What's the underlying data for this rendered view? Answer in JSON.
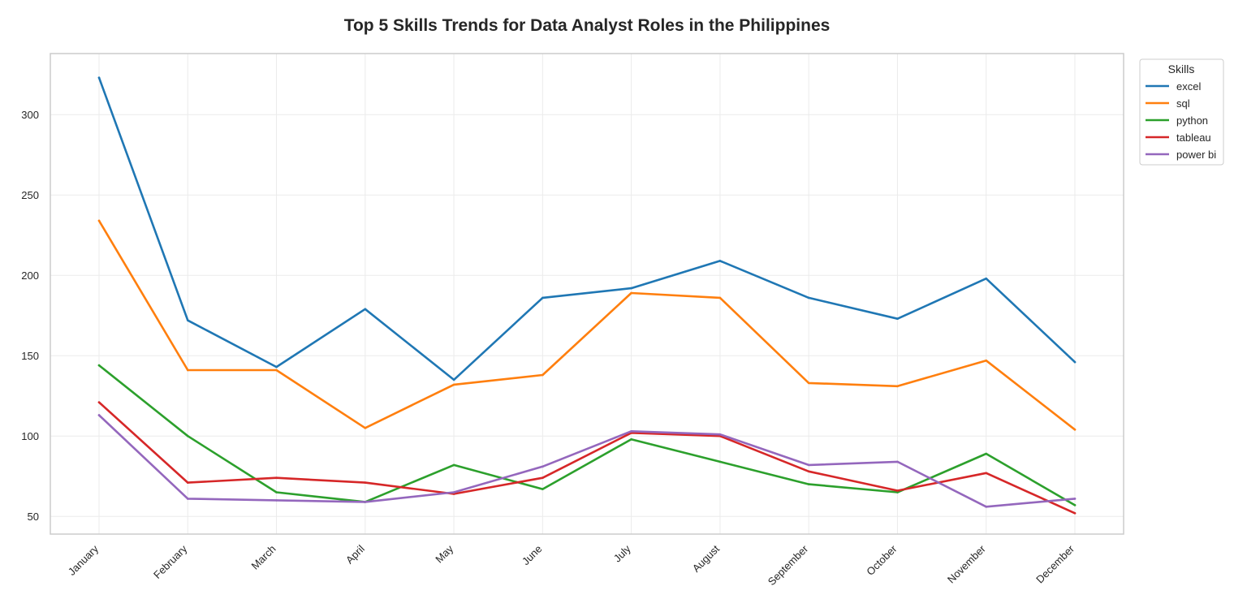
{
  "chart_data": {
    "type": "line",
    "title": "Top 5 Skills Trends for Data Analyst Roles in the Philippines",
    "xlabel": "",
    "ylabel": "",
    "categories": [
      "January",
      "February",
      "March",
      "April",
      "May",
      "June",
      "July",
      "August",
      "September",
      "October",
      "November",
      "December"
    ],
    "ylim": [
      39,
      338
    ],
    "yticks": [
      50,
      100,
      150,
      200,
      250,
      300
    ],
    "grid": true,
    "legend": {
      "title": "Skills",
      "placement": "outside upper right"
    },
    "series": [
      {
        "name": "excel",
        "color": "#1f77b4",
        "values": [
          323,
          172,
          143,
          179,
          135,
          186,
          192,
          209,
          186,
          173,
          198,
          146
        ]
      },
      {
        "name": "sql",
        "color": "#ff7f0e",
        "values": [
          234,
          141,
          141,
          105,
          132,
          138,
          189,
          186,
          133,
          131,
          147,
          104
        ]
      },
      {
        "name": "python",
        "color": "#2ca02c",
        "values": [
          144,
          100,
          65,
          59,
          82,
          67,
          98,
          84,
          70,
          65,
          89,
          57
        ]
      },
      {
        "name": "tableau",
        "color": "#d62728",
        "values": [
          121,
          71,
          74,
          71,
          64,
          74,
          102,
          100,
          78,
          66,
          77,
          52
        ]
      },
      {
        "name": "power bi",
        "color": "#9467bd",
        "values": [
          113,
          61,
          60,
          59,
          65,
          81,
          103,
          101,
          82,
          84,
          56,
          61
        ]
      }
    ]
  }
}
